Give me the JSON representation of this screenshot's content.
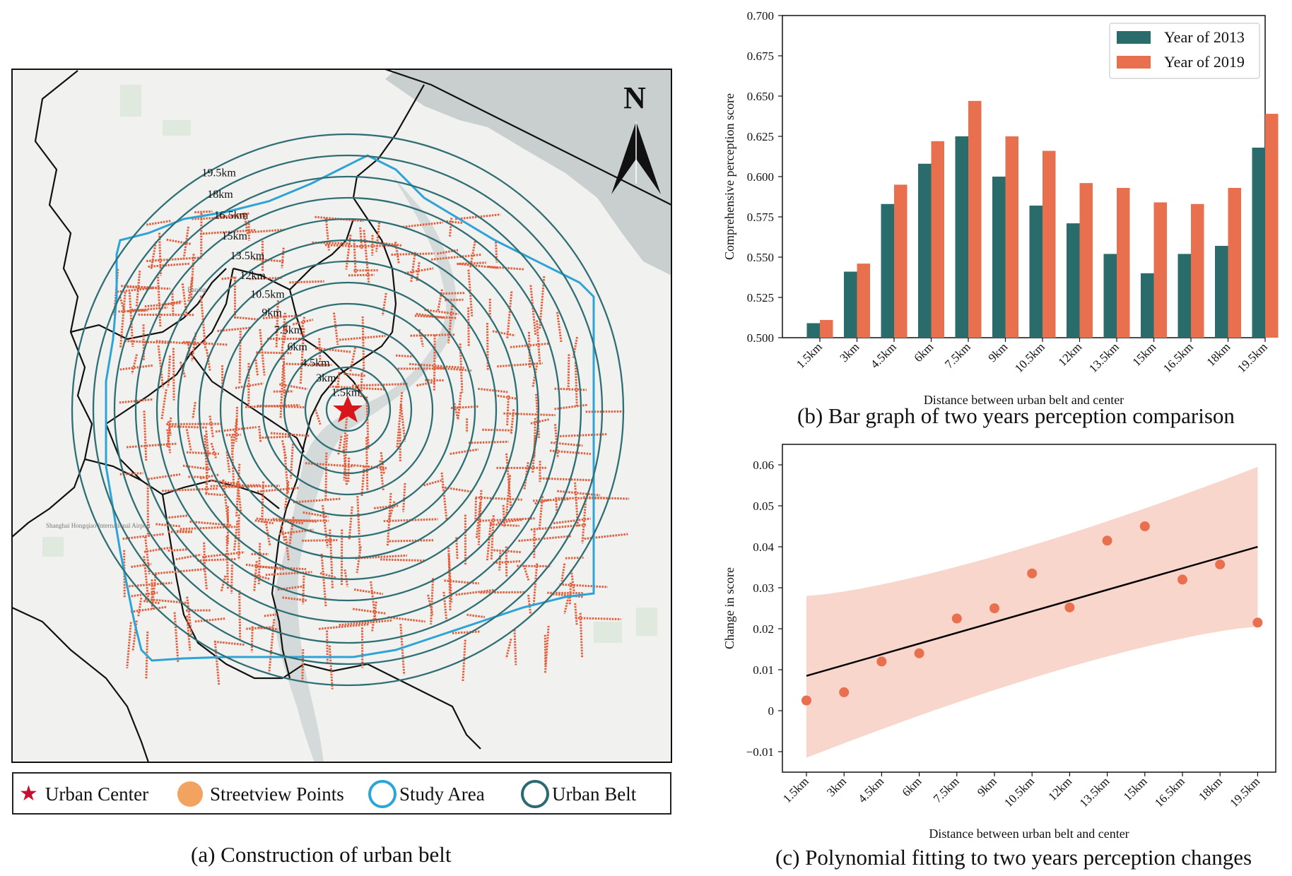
{
  "panel_a": {
    "caption": "(a) Construction of urban belt",
    "north_label": "N",
    "ring_labels": [
      "1.5km",
      "3km",
      "4.5km",
      "6km",
      "7.5km",
      "9km",
      "10.5km",
      "12km",
      "13.5km",
      "15km",
      "16.5km",
      "18km",
      "19.5km"
    ],
    "map_texts": [
      "Shanghai Hongqiao International Airport",
      "Daning"
    ],
    "legend": [
      {
        "label": "Urban Center",
        "icon": "red-star-icon",
        "color": "#c8102e"
      },
      {
        "label": "Streetview Points",
        "icon": "orange-dot-icon",
        "color": "#f2a35f"
      },
      {
        "label": "Study Area",
        "icon": "blue-ring-icon",
        "color": "#2aa6d8"
      },
      {
        "label": "Urban Belt",
        "icon": "teal-ring-icon",
        "color": "#2a6a70"
      }
    ],
    "colors": {
      "ring": "#2f6f74",
      "study_area": "#2ea3d6",
      "points": "#e0603f",
      "river": "#c9cfcf",
      "district": "#111111"
    }
  },
  "chart_data": [
    {
      "type": "bar",
      "caption": "(b) Bar graph of two years perception comparison",
      "title": "",
      "xlabel": "Distance between urban belt and center",
      "ylabel": "Comprehensive perception score",
      "ylim": [
        0.5,
        0.7
      ],
      "yticks": [
        "0.500",
        "0.525",
        "0.550",
        "0.575",
        "0.600",
        "0.625",
        "0.650",
        "0.675",
        "0.700"
      ],
      "categories": [
        "1.5km",
        "3km",
        "4.5km",
        "6km",
        "7.5km",
        "9km",
        "10.5km",
        "12km",
        "13.5km",
        "15km",
        "16.5km",
        "18km",
        "19.5km"
      ],
      "series": [
        {
          "name": "Year of 2013",
          "color": "#2a6b6b",
          "values": [
            0.509,
            0.541,
            0.583,
            0.608,
            0.625,
            0.6,
            0.582,
            0.571,
            0.552,
            0.54,
            0.552,
            0.557,
            0.618
          ]
        },
        {
          "name": "Year of 2019",
          "color": "#e8704f",
          "values": [
            0.511,
            0.546,
            0.595,
            0.622,
            0.647,
            0.625,
            0.616,
            0.596,
            0.593,
            0.584,
            0.583,
            0.593,
            0.639
          ]
        }
      ],
      "legend_position": "top-right"
    },
    {
      "type": "scatter",
      "caption": "(c) Polynomial fitting to two years perception changes",
      "title": "",
      "xlabel": "Distance between urban belt and center",
      "ylabel": "Change in score",
      "ylim": [
        -0.015,
        0.065
      ],
      "yticks": [
        "−0.01",
        "0",
        "0.01",
        "0.02",
        "0.03",
        "0.04",
        "0.05",
        "0.06"
      ],
      "ytick_values": [
        -0.01,
        0,
        0.01,
        0.02,
        0.03,
        0.04,
        0.05,
        0.06
      ],
      "categories": [
        "1.5km",
        "3km",
        "4.5km",
        "6km",
        "7.5km",
        "9km",
        "10.5km",
        "12km",
        "13.5km",
        "15km",
        "16.5km",
        "18km",
        "19.5km"
      ],
      "points": [
        0.0025,
        0.0045,
        0.012,
        0.014,
        0.0225,
        0.025,
        0.0335,
        0.0252,
        0.0415,
        0.045,
        0.032,
        0.0357,
        0.0215
      ],
      "fit_line": {
        "start": 0.0085,
        "end": 0.04
      },
      "confidence_band": {
        "upper_start": 0.028,
        "upper_end": 0.0595,
        "lower_start": -0.0115,
        "lower_end": 0.0205
      },
      "colors": {
        "points": "#e8704f",
        "band": "#f8d6cc",
        "line": "#000000"
      }
    }
  ]
}
